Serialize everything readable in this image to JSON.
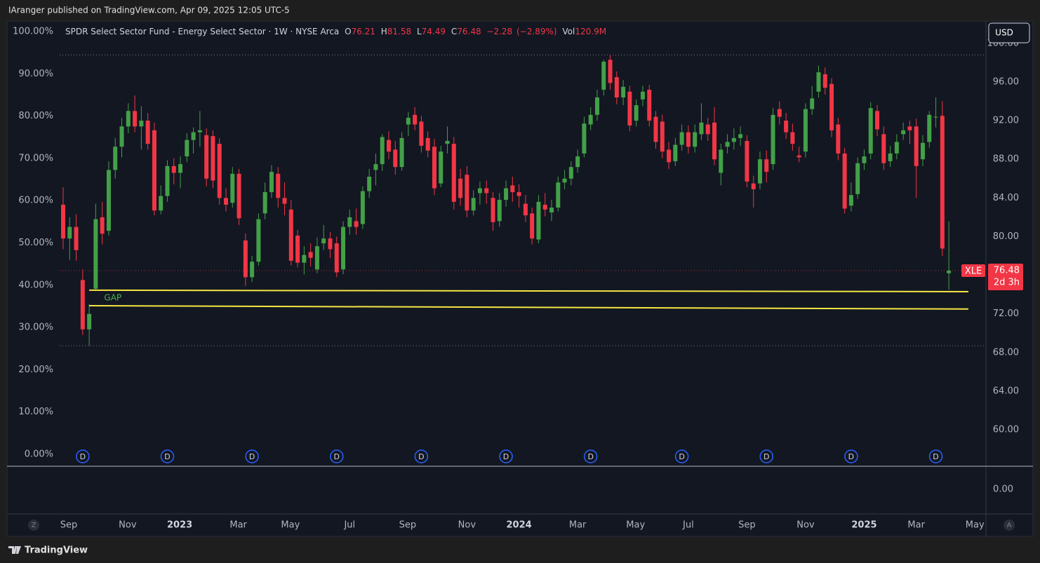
{
  "header": {
    "published": "IAranger published on TradingView.com, Apr 09, 2025 12:05 UTC-5"
  },
  "footer": {
    "brand": "TradingView"
  },
  "chart_data": {
    "type": "candlestick",
    "title": "SPDR Select Sector Fund - Energy Select Sector · 1W · NYSE Arca",
    "symbol": "XLE",
    "currency": "USD",
    "countdown": "2d 3h",
    "ohlc_letters": [
      "O",
      "H",
      "L",
      "C"
    ],
    "change": {
      "value": -2.28,
      "label": "−2.28"
    },
    "change_pct": {
      "value": -2.89,
      "label": "(−2.89%)"
    },
    "volume_prefix": "Vol",
    "volume": {
      "value": 120900000,
      "label": "120.9M"
    },
    "up_color": "#43a047",
    "down_color": "#f23645",
    "gap_color": "#f5e642",
    "gap_label": "GAP",
    "dividend_label": "D",
    "scale_buttons": [
      "Z",
      "A"
    ],
    "xlim": [
      -8.62,
      141.7
    ],
    "xticks": [
      {
        "value": 0.86,
        "label": "Sep"
      },
      {
        "value": 9.9,
        "label": "Nov"
      },
      {
        "value": 17.9,
        "label": "2023"
      },
      {
        "value": 26.9,
        "label": "Mar"
      },
      {
        "value": 34.9,
        "label": "May"
      },
      {
        "value": 44,
        "label": "Jul"
      },
      {
        "value": 52.9,
        "label": "Sep"
      },
      {
        "value": 62,
        "label": "Nov"
      },
      {
        "value": 70,
        "label": "2024"
      },
      {
        "value": 79,
        "label": "Mar"
      },
      {
        "value": 87.9,
        "label": "May"
      },
      {
        "value": 96,
        "label": "Jul"
      },
      {
        "value": 105,
        "label": "Sep"
      },
      {
        "value": 114,
        "label": "Nov"
      },
      {
        "value": 123,
        "label": "2025"
      },
      {
        "value": 131,
        "label": "Mar"
      },
      {
        "value": 140,
        "label": "May"
      }
    ],
    "ylim": [
      56.23,
      102.31
    ],
    "yticks": [
      {
        "value": 60,
        "label": "60.00"
      },
      {
        "value": 64,
        "label": "64.00"
      },
      {
        "value": 68,
        "label": "68.00"
      },
      {
        "value": 72,
        "label": "72.00"
      },
      {
        "value": 76,
        "label": "76.00"
      },
      {
        "value": 80,
        "label": "80.00"
      },
      {
        "value": 84,
        "label": "84.00"
      },
      {
        "value": 88,
        "label": "88.00"
      },
      {
        "value": 92,
        "label": "92.00"
      },
      {
        "value": 96,
        "label": "96.00"
      },
      {
        "value": 100,
        "label": "100.00"
      }
    ],
    "y2lim": [
      -2.82,
      102.49
    ],
    "y2ticks": [
      {
        "value": 0,
        "label": "0.00%"
      },
      {
        "value": 10,
        "label": "10.00%"
      },
      {
        "value": 20,
        "label": "20.00%"
      },
      {
        "value": 30,
        "label": "30.00%"
      },
      {
        "value": 40,
        "label": "40.00%"
      },
      {
        "value": 50,
        "label": "50.00%"
      },
      {
        "value": 60,
        "label": "60.00%"
      },
      {
        "value": 70,
        "label": "70.00%"
      },
      {
        "value": 80,
        "label": "80.00%"
      },
      {
        "value": 90,
        "label": "90.00%"
      },
      {
        "value": 100,
        "label": "100.00%"
      }
    ],
    "volume_pane_ticks": [
      {
        "value": 0,
        "label": "0.00"
      }
    ],
    "gap_lines": [
      {
        "x_from": 4,
        "x_to": 139,
        "from": 74.45,
        "to": 74.3
      },
      {
        "x_from": 4,
        "x_to": 139,
        "from": 72.85,
        "to": 72.5
      }
    ],
    "gap_label_x": 5,
    "dividends": [
      3,
      16,
      29,
      42,
      55,
      68,
      81,
      95,
      108,
      121,
      134
    ],
    "candles": [
      [
        83.3,
        85.1,
        78.7,
        79.8
      ],
      [
        79.8,
        82.0,
        77.6,
        81.0
      ],
      [
        81.0,
        82.3,
        77.5,
        78.6
      ],
      [
        75.5,
        76.6,
        69.8,
        70.4
      ],
      [
        70.4,
        73.0,
        68.7,
        72.0
      ],
      [
        74.6,
        83.4,
        74.5,
        81.8
      ],
      [
        82.0,
        83.6,
        79.2,
        80.3
      ],
      [
        80.6,
        87.8,
        80.1,
        86.9
      ],
      [
        86.9,
        90.2,
        86.0,
        89.3
      ],
      [
        89.3,
        92.3,
        88.2,
        91.4
      ],
      [
        91.4,
        93.8,
        90.7,
        93.0
      ],
      [
        93.0,
        94.6,
        90.8,
        91.4
      ],
      [
        91.4,
        93.5,
        89.0,
        92.0
      ],
      [
        92.0,
        92.8,
        89.0,
        89.6
      ],
      [
        91.0,
        91.8,
        82.2,
        82.7
      ],
      [
        82.7,
        85.3,
        82.3,
        84.2
      ],
      [
        84.2,
        87.9,
        83.6,
        87.3
      ],
      [
        87.3,
        88.1,
        85.4,
        86.6
      ],
      [
        86.6,
        88.3,
        85.0,
        87.5
      ],
      [
        88.3,
        90.7,
        87.7,
        90.0
      ],
      [
        90.0,
        91.3,
        88.6,
        90.8
      ],
      [
        90.8,
        93.0,
        89.3,
        91.0
      ],
      [
        90.5,
        91.2,
        85.2,
        86.0
      ],
      [
        90.4,
        91.0,
        85.0,
        85.8
      ],
      [
        89.6,
        90.2,
        83.3,
        84.0
      ],
      [
        84.0,
        85.0,
        82.6,
        83.3
      ],
      [
        83.5,
        87.2,
        83.0,
        86.5
      ],
      [
        86.5,
        87.0,
        81.2,
        81.9
      ],
      [
        79.6,
        80.3,
        74.9,
        75.8
      ],
      [
        75.8,
        78.0,
        75.3,
        77.4
      ],
      [
        77.4,
        82.4,
        77.0,
        81.8
      ],
      [
        82.4,
        85.6,
        81.8,
        84.6
      ],
      [
        84.6,
        87.4,
        84.0,
        86.7
      ],
      [
        86.5,
        87.2,
        83.0,
        84.0
      ],
      [
        84.0,
        85.6,
        82.2,
        83.4
      ],
      [
        82.8,
        83.8,
        77.0,
        77.5
      ],
      [
        80.1,
        80.7,
        76.8,
        77.3
      ],
      [
        77.3,
        79.0,
        76.1,
        78.1
      ],
      [
        78.4,
        79.3,
        76.9,
        77.8
      ],
      [
        76.6,
        79.9,
        76.2,
        79.0
      ],
      [
        79.3,
        81.2,
        78.6,
        79.8
      ],
      [
        79.8,
        80.5,
        77.8,
        78.7
      ],
      [
        79.3,
        80.0,
        75.8,
        76.3
      ],
      [
        76.6,
        81.6,
        76.1,
        81.0
      ],
      [
        81.0,
        82.8,
        80.2,
        82.0
      ],
      [
        81.6,
        82.9,
        80.2,
        81.0
      ],
      [
        81.3,
        85.2,
        80.8,
        84.7
      ],
      [
        84.7,
        87.0,
        84.0,
        86.2
      ],
      [
        86.9,
        88.6,
        85.3,
        87.5
      ],
      [
        87.5,
        90.6,
        86.8,
        90.3
      ],
      [
        90.0,
        90.9,
        88.0,
        88.8
      ],
      [
        89.0,
        89.9,
        86.4,
        87.2
      ],
      [
        87.2,
        90.8,
        86.8,
        90.2
      ],
      [
        91.6,
        92.9,
        90.4,
        92.3
      ],
      [
        92.6,
        93.4,
        91.0,
        91.6
      ],
      [
        91.9,
        92.5,
        88.7,
        89.4
      ],
      [
        90.2,
        90.9,
        88.2,
        88.9
      ],
      [
        89.3,
        90.1,
        84.3,
        85.0
      ],
      [
        85.5,
        89.4,
        85.1,
        88.8
      ],
      [
        89.6,
        91.4,
        88.6,
        89.9
      ],
      [
        89.6,
        90.3,
        82.8,
        83.6
      ],
      [
        86.0,
        87.0,
        83.2,
        84.0
      ],
      [
        86.4,
        87.3,
        82.0,
        82.7
      ],
      [
        82.7,
        84.8,
        82.2,
        84.0
      ],
      [
        84.5,
        85.7,
        83.3,
        85.0
      ],
      [
        85.0,
        85.8,
        83.4,
        84.5
      ],
      [
        84.0,
        84.6,
        80.6,
        81.5
      ],
      [
        81.6,
        84.5,
        81.0,
        83.8
      ],
      [
        83.8,
        85.8,
        83.1,
        85.0
      ],
      [
        85.3,
        86.2,
        83.6,
        84.6
      ],
      [
        84.6,
        85.4,
        83.0,
        84.2
      ],
      [
        83.4,
        84.3,
        81.5,
        82.2
      ],
      [
        82.4,
        83.0,
        79.2,
        79.8
      ],
      [
        79.7,
        84.3,
        79.3,
        83.6
      ],
      [
        83.3,
        84.5,
        82.1,
        82.8
      ],
      [
        82.5,
        83.8,
        81.6,
        83.0
      ],
      [
        83.0,
        86.2,
        82.6,
        85.6
      ],
      [
        85.6,
        86.9,
        84.9,
        86.0
      ],
      [
        86.0,
        87.8,
        85.3,
        87.2
      ],
      [
        87.2,
        89.0,
        86.6,
        88.3
      ],
      [
        88.6,
        92.4,
        88.2,
        91.7
      ],
      [
        91.6,
        93.4,
        91.0,
        92.6
      ],
      [
        92.6,
        95.2,
        92.0,
        94.4
      ],
      [
        95.2,
        98.3,
        94.6,
        98.1
      ],
      [
        98.3,
        98.8,
        95.2,
        95.9
      ],
      [
        96.5,
        97.1,
        93.7,
        94.4
      ],
      [
        94.4,
        96.2,
        93.6,
        95.5
      ],
      [
        95.0,
        95.6,
        90.9,
        91.5
      ],
      [
        92.0,
        94.2,
        91.4,
        93.6
      ],
      [
        94.2,
        95.6,
        93.5,
        95.0
      ],
      [
        95.2,
        95.7,
        91.4,
        92.0
      ],
      [
        92.4,
        93.0,
        89.1,
        89.8
      ],
      [
        91.9,
        92.6,
        88.1,
        88.8
      ],
      [
        89.0,
        89.8,
        87.0,
        87.7
      ],
      [
        87.8,
        90.2,
        87.3,
        89.5
      ],
      [
        89.5,
        91.6,
        88.9,
        90.8
      ],
      [
        90.8,
        91.5,
        88.6,
        89.3
      ],
      [
        89.3,
        91.6,
        88.7,
        90.8
      ],
      [
        90.6,
        93.8,
        90.0,
        91.8
      ],
      [
        91.6,
        92.3,
        89.9,
        90.6
      ],
      [
        91.8,
        93.4,
        87.4,
        88.0
      ],
      [
        86.6,
        89.6,
        85.3,
        89.0
      ],
      [
        89.3,
        90.6,
        88.6,
        89.8
      ],
      [
        89.8,
        91.2,
        89.0,
        90.2
      ],
      [
        90.2,
        91.4,
        89.4,
        90.6
      ],
      [
        89.9,
        90.5,
        85.1,
        85.7
      ],
      [
        85.5,
        86.3,
        83.0,
        84.9
      ],
      [
        85.5,
        88.8,
        84.9,
        88.0
      ],
      [
        88.0,
        88.9,
        85.6,
        86.7
      ],
      [
        87.5,
        93.3,
        86.9,
        92.6
      ],
      [
        93.2,
        94.0,
        91.6,
        92.4
      ],
      [
        92.0,
        92.8,
        90.1,
        90.8
      ],
      [
        90.8,
        91.7,
        88.9,
        89.6
      ],
      [
        88.4,
        89.3,
        87.7,
        88.2
      ],
      [
        88.8,
        93.8,
        88.2,
        93.2
      ],
      [
        93.2,
        95.6,
        92.6,
        94.3
      ],
      [
        95.0,
        97.7,
        94.4,
        97.0
      ],
      [
        96.8,
        97.5,
        94.7,
        95.4
      ],
      [
        95.8,
        96.4,
        90.3,
        91.0
      ],
      [
        91.6,
        92.3,
        87.9,
        88.6
      ],
      [
        88.6,
        89.2,
        82.4,
        82.9
      ],
      [
        83.2,
        85.6,
        82.6,
        84.3
      ],
      [
        84.4,
        88.2,
        83.9,
        87.6
      ],
      [
        87.6,
        89.0,
        86.9,
        88.3
      ],
      [
        88.6,
        93.9,
        88.0,
        93.3
      ],
      [
        93.0,
        93.6,
        90.4,
        91.1
      ],
      [
        90.6,
        91.4,
        86.9,
        87.6
      ],
      [
        87.8,
        89.4,
        87.2,
        88.6
      ],
      [
        88.6,
        90.6,
        88.0,
        89.8
      ],
      [
        90.6,
        91.8,
        90.0,
        91.0
      ],
      [
        91.4,
        92.0,
        89.6,
        91.0
      ],
      [
        91.4,
        92.2,
        84.0,
        87.3
      ],
      [
        88.0,
        90.5,
        87.3,
        89.7
      ],
      [
        89.8,
        93.0,
        89.2,
        92.6
      ],
      [
        92.4,
        94.4,
        91.3,
        92.4
      ],
      [
        92.5,
        94.0,
        78.0,
        78.76
      ],
      [
        76.21,
        81.58,
        74.49,
        76.48
      ]
    ]
  }
}
